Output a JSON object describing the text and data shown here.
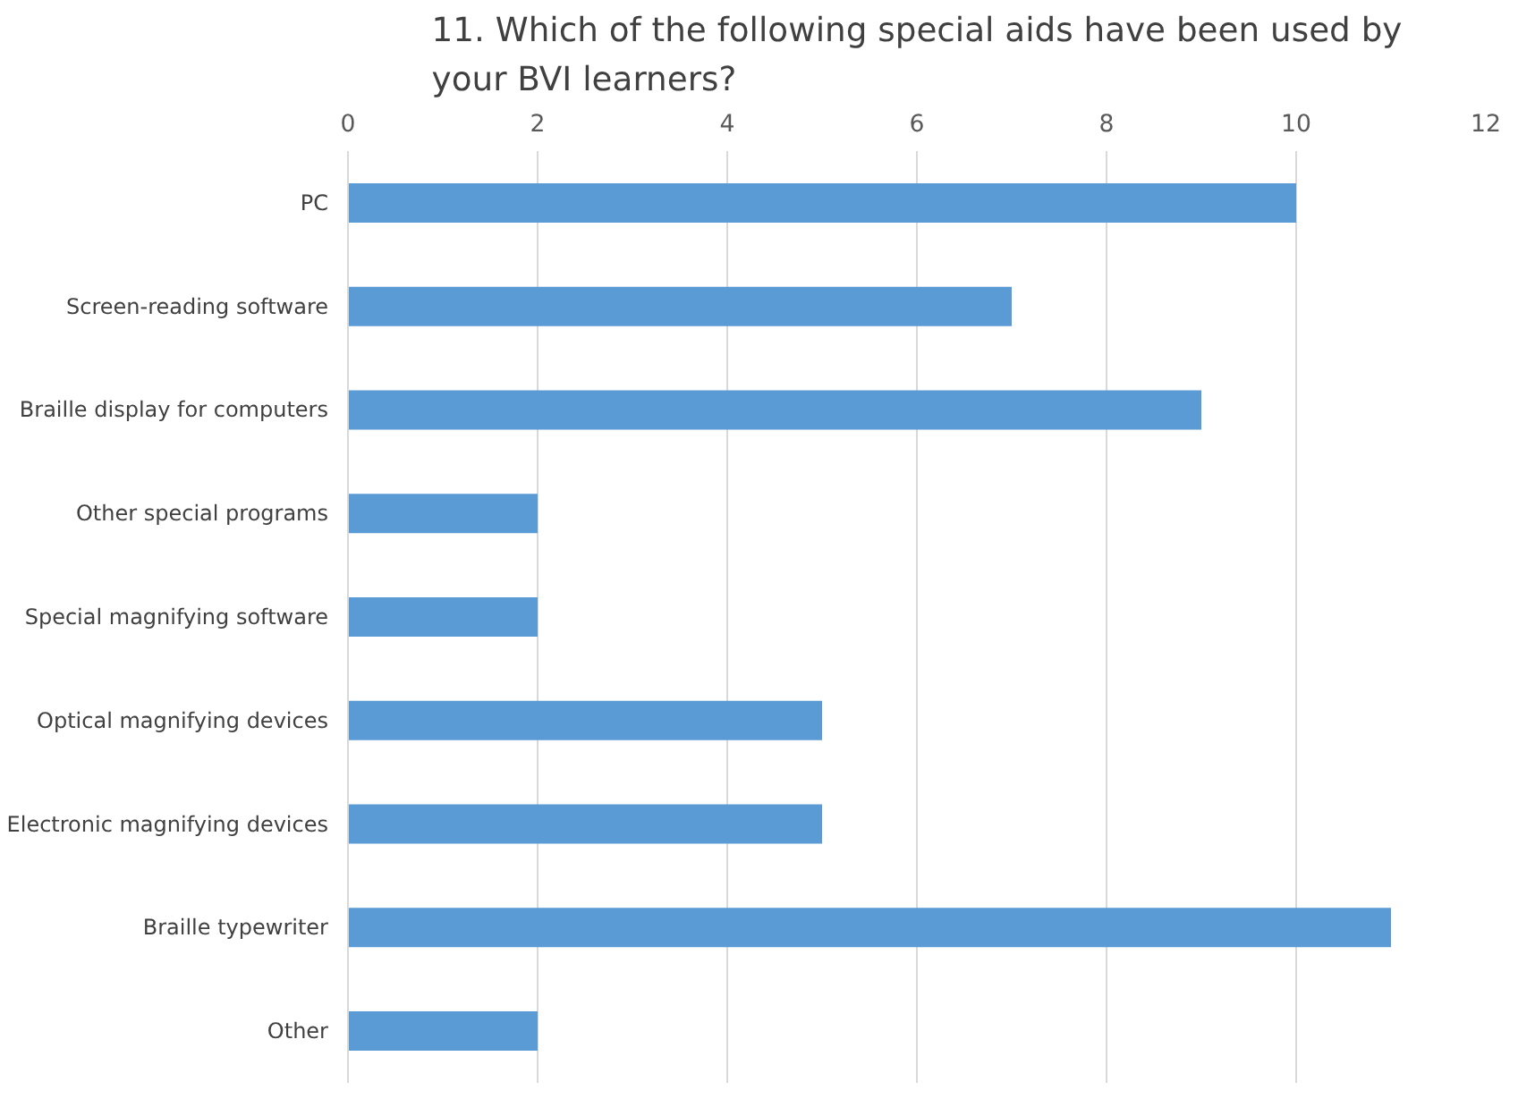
{
  "chart_data": {
    "type": "bar",
    "orientation": "horizontal",
    "title": "11. Which of the following special aids have been used by your BVI learners?",
    "categories": [
      "PC",
      "Screen-reading software",
      "Braille display for computers",
      "Other special programs",
      "Special magnifying software",
      "Optical magnifying devices",
      "Electronic magnifying devices",
      "Braille typewriter",
      "Other"
    ],
    "values": [
      10,
      7,
      9,
      2,
      2,
      5,
      5,
      11,
      2
    ],
    "color": "#5b9bd5",
    "xlim": [
      0,
      12
    ],
    "xticks": [
      0,
      2,
      4,
      6,
      8,
      10,
      12
    ],
    "grid": "x"
  }
}
